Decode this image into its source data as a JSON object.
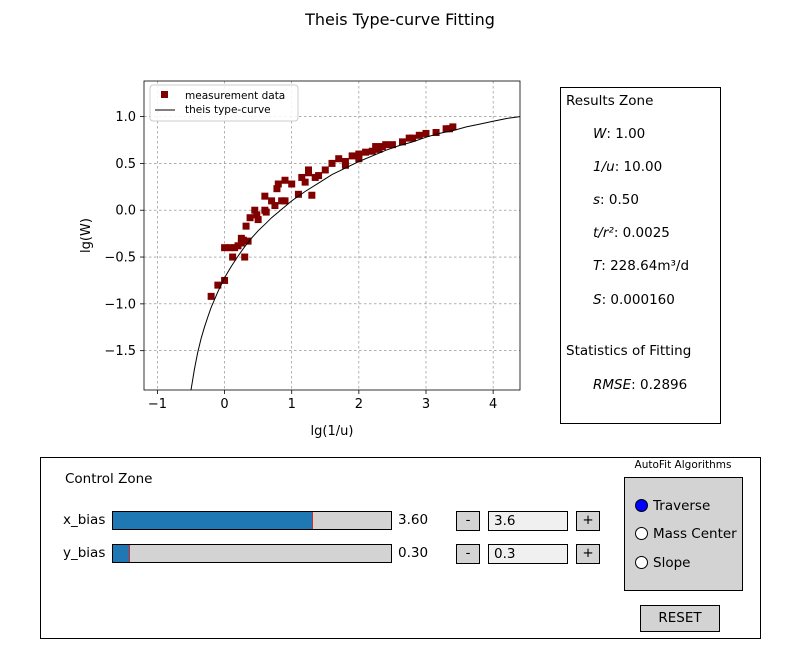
{
  "figure_title": "Theis Type-curve Fitting",
  "chart_data": {
    "type": "scatter",
    "xlabel": "lg(1/u)",
    "ylabel": "lg(W)",
    "xlim": [
      -1.2,
      4.4
    ],
    "ylim": [
      -1.92,
      1.38
    ],
    "xticks": [
      -1,
      0,
      1,
      2,
      3,
      4
    ],
    "yticks": [
      -1.5,
      -1.0,
      -0.5,
      0.0,
      0.5,
      1.0
    ],
    "xtick_labels": [
      "−1",
      "0",
      "1",
      "2",
      "3",
      "4"
    ],
    "ytick_labels": [
      "−1.5",
      "−1.0",
      "−0.5",
      "0.0",
      "0.5",
      "1.0"
    ],
    "grid": true,
    "legend_position": "top-left",
    "series": [
      {
        "name": "measurement data",
        "kind": "markers",
        "marker": "square",
        "color": "#800000",
        "x": [
          -0.2,
          -0.1,
          0.0,
          0.0,
          0.08,
          0.12,
          0.15,
          0.2,
          0.25,
          0.25,
          0.28,
          0.3,
          0.32,
          0.35,
          0.38,
          0.45,
          0.48,
          0.5,
          0.6,
          0.6,
          0.62,
          0.7,
          0.75,
          0.78,
          0.8,
          0.85,
          0.9,
          0.9,
          1.0,
          1.1,
          1.15,
          1.2,
          1.25,
          1.25,
          1.3,
          1.35,
          1.4,
          1.5,
          1.6,
          1.7,
          1.8,
          1.8,
          1.9,
          2.0,
          2.0,
          2.1,
          2.2,
          2.25,
          2.3,
          2.35,
          2.4,
          2.5,
          2.65,
          2.75,
          2.8,
          2.9,
          3.0,
          3.15,
          3.3,
          3.35,
          3.4
        ],
        "y": [
          -0.92,
          -0.8,
          -0.75,
          -0.4,
          -0.4,
          -0.5,
          -0.4,
          -0.38,
          -0.3,
          -0.35,
          -0.32,
          -0.5,
          -0.17,
          -0.33,
          -0.08,
          0.0,
          -0.05,
          -0.1,
          0.15,
          0.0,
          -0.02,
          0.1,
          0.05,
          0.23,
          0.28,
          0.1,
          0.1,
          0.32,
          0.28,
          0.17,
          0.35,
          0.3,
          0.4,
          0.43,
          0.16,
          0.35,
          0.37,
          0.43,
          0.5,
          0.55,
          0.48,
          0.52,
          0.58,
          0.55,
          0.6,
          0.62,
          0.63,
          0.68,
          0.65,
          0.68,
          0.7,
          0.7,
          0.73,
          0.77,
          0.77,
          0.8,
          0.82,
          0.83,
          0.87,
          0.87,
          0.89
        ]
      },
      {
        "name": "theis type-curve",
        "kind": "line",
        "color": "#000000",
        "x": [
          -0.5,
          -0.45,
          -0.4,
          -0.35,
          -0.3,
          -0.25,
          -0.2,
          -0.1,
          0.0,
          0.1,
          0.2,
          0.3,
          0.4,
          0.5,
          0.6,
          0.7,
          0.8,
          0.9,
          1.0,
          1.2,
          1.4,
          1.6,
          1.8,
          2.0,
          2.2,
          2.4,
          2.6,
          2.8,
          3.0,
          3.2,
          3.4,
          3.6,
          3.8,
          4.0,
          4.2,
          4.4
        ],
        "y": [
          -1.92,
          -1.7,
          -1.52,
          -1.37,
          -1.25,
          -1.14,
          -1.04,
          -0.87,
          -0.72,
          -0.6,
          -0.49,
          -0.39,
          -0.3,
          -0.22,
          -0.15,
          -0.08,
          -0.02,
          0.04,
          0.1,
          0.2,
          0.29,
          0.38,
          0.45,
          0.52,
          0.58,
          0.64,
          0.69,
          0.73,
          0.78,
          0.82,
          0.85,
          0.89,
          0.92,
          0.95,
          0.98,
          1.0
        ]
      }
    ]
  },
  "results_zone": {
    "title": "Results Zone",
    "rows": [
      {
        "label": "W",
        "value": "1.00"
      },
      {
        "label": "1/u",
        "value": "10.00"
      },
      {
        "label": "s",
        "value": "0.50"
      },
      {
        "label": "t/r²",
        "value": "0.0025"
      },
      {
        "label": "T",
        "value": "228.64m³/d"
      },
      {
        "label": "S",
        "value": "0.000160"
      }
    ],
    "stats_title": "Statistics of Fitting",
    "rmse": {
      "label": "RMSE",
      "value": "0.2896"
    }
  },
  "control_zone": {
    "title": "Control Zone",
    "x_bias": {
      "label": "x_bias",
      "value": 3.6,
      "min": 0,
      "max": 5,
      "value_text": "3.60",
      "text_box": "3.6"
    },
    "y_bias": {
      "label": "y_bias",
      "value": 0.3,
      "min": 0,
      "max": 5,
      "value_text": "0.30",
      "text_box": "0.3"
    },
    "minus_label": "-",
    "plus_label": "+",
    "autofit": {
      "title": "AutoFit Algorithms",
      "options": [
        "Traverse",
        "Mass Center",
        "Slope"
      ],
      "selected": "Traverse"
    },
    "reset_label": "RESET"
  },
  "colors": {
    "slider_fill": "#1f77b4",
    "slider_handle": "#d62728",
    "panel_gray": "#d3d3d3",
    "radio_on": "#0000ff"
  }
}
